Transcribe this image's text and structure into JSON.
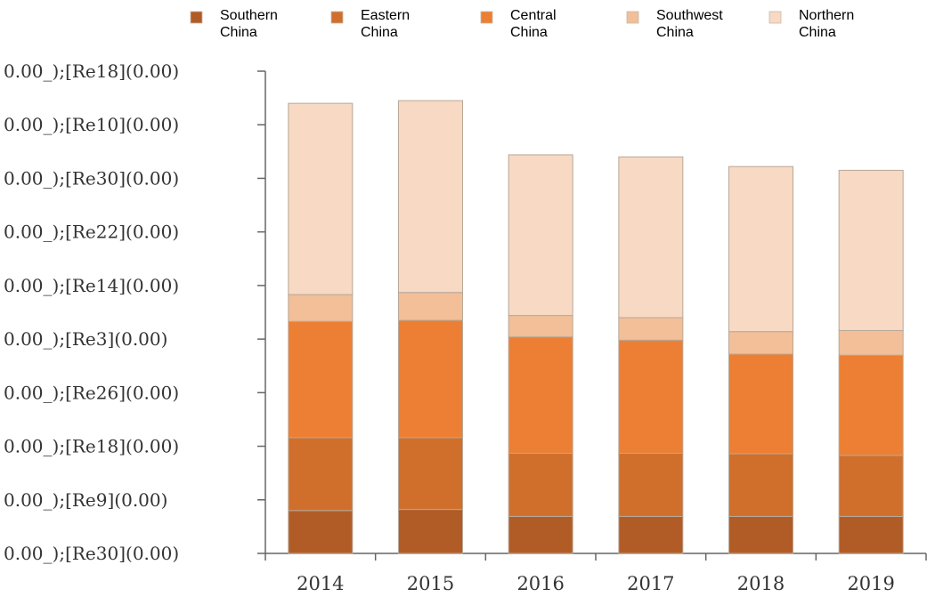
{
  "chart_data": {
    "type": "bar",
    "stacked": true,
    "categories": [
      "2014",
      "2015",
      "2016",
      "2017",
      "2018",
      "2019"
    ],
    "y_tick_labels": [
      "0.00_);[Re30](0.00)",
      "0.00_);[Re9](0.00)",
      "0.00_);[Re18](0.00)",
      "0.00_);[Re26](0.00)",
      "0.00_);[Re3](0.00)",
      "0.00_);[Re14](0.00)",
      "0.00_);[Re22](0.00)",
      "0.00_);[Re30](0.00)",
      "0.00_);[Re10](0.00)",
      "0.00_);[Re18](0.00)"
    ],
    "ylim": [
      0,
      9
    ],
    "grid": false,
    "legend_position": "top",
    "series": [
      {
        "name": "Southern\nChina",
        "color": "#b15c26",
        "values": [
          0.8,
          0.82,
          0.69,
          0.69,
          0.69,
          0.69
        ]
      },
      {
        "name": "Eastern\nChina",
        "color": "#d06f2c",
        "values": [
          1.36,
          1.34,
          1.18,
          1.18,
          1.17,
          1.14
        ]
      },
      {
        "name": "Central\nChina",
        "color": "#ec7f33",
        "values": [
          2.17,
          2.19,
          2.17,
          2.11,
          1.86,
          1.87
        ]
      },
      {
        "name": "Southwest\nChina",
        "color": "#f2bf98",
        "values": [
          0.5,
          0.52,
          0.4,
          0.42,
          0.42,
          0.46
        ]
      },
      {
        "name": "Northern\nChina",
        "color": "#f7d9c4",
        "values": [
          3.57,
          3.58,
          3.0,
          3.0,
          3.08,
          2.99
        ]
      }
    ]
  }
}
